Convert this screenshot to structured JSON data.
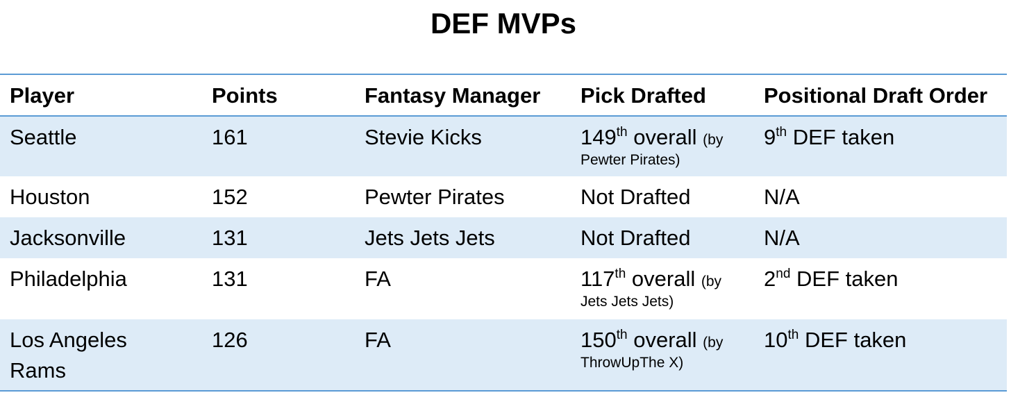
{
  "title": "DEF MVPs",
  "columns": [
    "Player",
    "Points",
    "Fantasy Manager",
    "Pick Drafted",
    "Positional Draft Order"
  ],
  "rows": [
    {
      "player": "Seattle",
      "points": "161",
      "manager": "Stevie Kicks",
      "pick_num": "149",
      "pick_suffix": "th",
      "pick_word": "overall",
      "by_open": "(by",
      "by_team": "Pewter Pirates)",
      "pos_num": "9",
      "pos_suffix": "th",
      "pos_text": "DEF taken"
    },
    {
      "player": "Houston",
      "points": "152",
      "manager": "Pewter Pirates",
      "pick_text": "Not Drafted",
      "pos_text": "N/A"
    },
    {
      "player": "Jacksonville",
      "points": "131",
      "manager": "Jets Jets Jets",
      "pick_text": "Not Drafted",
      "pos_text": "N/A"
    },
    {
      "player": "Philadelphia",
      "points": "131",
      "manager": "FA",
      "pick_num": "117",
      "pick_suffix": "th",
      "pick_word": "overall",
      "by_open": "(by",
      "by_team": "Jets Jets Jets)",
      "pos_num": "2",
      "pos_suffix": "nd",
      "pos_text": "DEF taken"
    },
    {
      "player": "Los Angeles Rams",
      "points": "126",
      "manager": "FA",
      "pick_num": "150",
      "pick_suffix": "th",
      "pick_word": "overall",
      "by_open": "(by",
      "by_team": "ThrowUpThe X)",
      "pos_num": "10",
      "pos_suffix": "th",
      "pos_text": "DEF taken"
    }
  ]
}
